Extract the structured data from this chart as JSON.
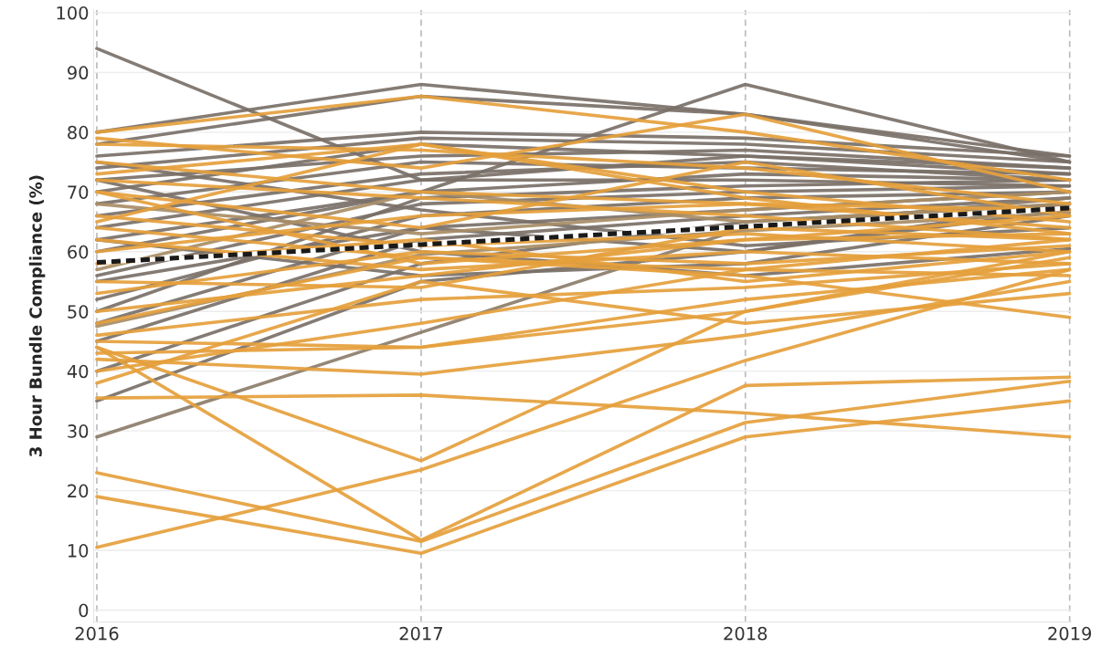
{
  "chart_data": {
    "type": "line",
    "ylabel": "3 Hour Bundle Compliance (%)",
    "x": [
      2016,
      2017,
      2018,
      2019
    ],
    "xlim": [
      2015.99,
      2019.005
    ],
    "xticks": [
      2016,
      2017,
      2018,
      2019
    ],
    "ylim": [
      -2,
      100.5
    ],
    "yticks": [
      0,
      10,
      20,
      30,
      40,
      50,
      60,
      70,
      80,
      90,
      100
    ],
    "grid": true,
    "legend": false,
    "marker": "none",
    "line_style": "solid",
    "series": [
      {
        "color": "#7a7068",
        "values": [
          94,
          72,
          76,
          74
        ]
      },
      {
        "color": "#7a7068",
        "values": [
          80,
          88,
          83,
          76
        ]
      },
      {
        "color": "#7a7068",
        "values": [
          78,
          86,
          83,
          75
        ]
      },
      {
        "color": "#7a7068",
        "values": [
          62,
          70,
          88,
          75
        ]
      },
      {
        "color": "#7a7068",
        "values": [
          76,
          80,
          79,
          76
        ]
      },
      {
        "color": "#7a7068",
        "values": [
          74,
          79,
          78,
          75
        ]
      },
      {
        "color": "#7a7068",
        "values": [
          72,
          76,
          77,
          74
        ]
      },
      {
        "color": "#7a7068",
        "values": [
          70,
          78,
          76,
          73
        ]
      },
      {
        "color": "#7a7068",
        "values": [
          68,
          75,
          74,
          73
        ]
      },
      {
        "color": "#7a7068",
        "values": [
          66,
          73,
          75,
          72
        ]
      },
      {
        "color": "#7a7068",
        "values": [
          64,
          72,
          72,
          71
        ]
      },
      {
        "color": "#7a7068",
        "values": [
          60,
          70,
          73,
          72
        ]
      },
      {
        "color": "#7a7068",
        "values": [
          56,
          68,
          70,
          71
        ]
      },
      {
        "color": "#7a7068",
        "values": [
          52,
          66,
          69,
          70
        ]
      },
      {
        "color": "#7a7068",
        "values": [
          48,
          64,
          67,
          70
        ]
      },
      {
        "color": "#7a7068",
        "values": [
          45,
          62,
          66,
          69
        ]
      },
      {
        "color": "#7a7068",
        "values": [
          40,
          58,
          65,
          68
        ]
      },
      {
        "color": "#7a7068",
        "values": [
          35,
          55,
          60,
          67
        ]
      },
      {
        "color": "#8c7d6a",
        "values": [
          29,
          46.5,
          64,
          69
        ]
      },
      {
        "color": "#7a7068",
        "values": [
          75,
          67,
          61,
          64
        ]
      },
      {
        "color": "#7a7068",
        "values": [
          72,
          60,
          56,
          60.5
        ]
      },
      {
        "color": "#7a7068",
        "values": [
          62,
          56,
          58,
          66
        ]
      },
      {
        "color": "#7a7068",
        "values": [
          55,
          64,
          60,
          68
        ]
      },
      {
        "color": "#7a7068",
        "values": [
          50,
          69,
          71,
          72
        ]
      },
      {
        "color": "#a88d66",
        "values": [
          68,
          63,
          67,
          70
        ]
      },
      {
        "color": "#a88d66",
        "values": [
          57,
          70,
          65,
          68
        ]
      },
      {
        "color": "#a88d66",
        "values": [
          47.5,
          59.5,
          63.5,
          66.5
        ]
      },
      {
        "color": "#e5a03c",
        "values": [
          80,
          86,
          80,
          72
        ]
      },
      {
        "color": "#e5a03c",
        "values": [
          79,
          74,
          83,
          70
        ]
      },
      {
        "color": "#e5a03c",
        "values": [
          78,
          77,
          74,
          68
        ]
      },
      {
        "color": "#e5a03c",
        "values": [
          73,
          78,
          70,
          65
        ]
      },
      {
        "color": "#e5a03c",
        "values": [
          72,
          69,
          66,
          62
        ]
      },
      {
        "color": "#e5a03c",
        "values": [
          70,
          64,
          75,
          66
        ]
      },
      {
        "color": "#e5a03c",
        "values": [
          66,
          61,
          63,
          60
        ]
      },
      {
        "color": "#e5a03c",
        "values": [
          65,
          78,
          69,
          63
        ]
      },
      {
        "color": "#e5a03c",
        "values": [
          62,
          57,
          60,
          58
        ]
      },
      {
        "color": "#e5a03c",
        "values": [
          60,
          66,
          68,
          64
        ]
      },
      {
        "color": "#e5a03c",
        "values": [
          58,
          62,
          55,
          60
        ]
      },
      {
        "color": "#e5a03c",
        "values": [
          55,
          54,
          64,
          62
        ]
      },
      {
        "color": "#e5a03c",
        "values": [
          53,
          60,
          58,
          61
        ]
      },
      {
        "color": "#e5a03c",
        "values": [
          50,
          56,
          62,
          63
        ]
      },
      {
        "color": "#e5a03c",
        "values": [
          48,
          59,
          57,
          56
        ]
      },
      {
        "color": "#e5a03c",
        "values": [
          46,
          52,
          54,
          58
        ]
      },
      {
        "color": "#e5a03c",
        "values": [
          44,
          11.7,
          37.6,
          39
        ]
      },
      {
        "color": "#e5a03c",
        "values": [
          45,
          44,
          50,
          59
        ]
      },
      {
        "color": "#e5a03c",
        "values": [
          42,
          39.5,
          46,
          55
        ]
      },
      {
        "color": "#e5a03c",
        "values": [
          44,
          25,
          50,
          60
        ]
      },
      {
        "color": "#e5a03c",
        "values": [
          43,
          44,
          52,
          57
        ]
      },
      {
        "color": "#e5a03c",
        "values": [
          38,
          55,
          48,
          53
        ]
      },
      {
        "color": "#e5a03c",
        "values": [
          35.5,
          36,
          33,
          29
        ]
      },
      {
        "color": "#e5a03c",
        "values": [
          23,
          11.5,
          31.4,
          38.3
        ]
      },
      {
        "color": "#e5a03c",
        "values": [
          19,
          9.5,
          29,
          35
        ]
      },
      {
        "color": "#e5a03c",
        "values": [
          10.5,
          23.5,
          41.8,
          57
        ]
      },
      {
        "color": "#e5a03c",
        "values": [
          64,
          59,
          56,
          49
        ]
      },
      {
        "color": "#e5a03c",
        "values": [
          75,
          70,
          68,
          67
        ]
      },
      {
        "color": "#e5a03c",
        "values": [
          70,
          58,
          62,
          66
        ]
      },
      {
        "color": "#e5a03c",
        "values": [
          40,
          48,
          57,
          62
        ]
      },
      {
        "color": "#1a1a1a",
        "line_style": "dashed",
        "values": [
          58.2,
          61.2,
          64.2,
          67.3
        ]
      }
    ]
  }
}
